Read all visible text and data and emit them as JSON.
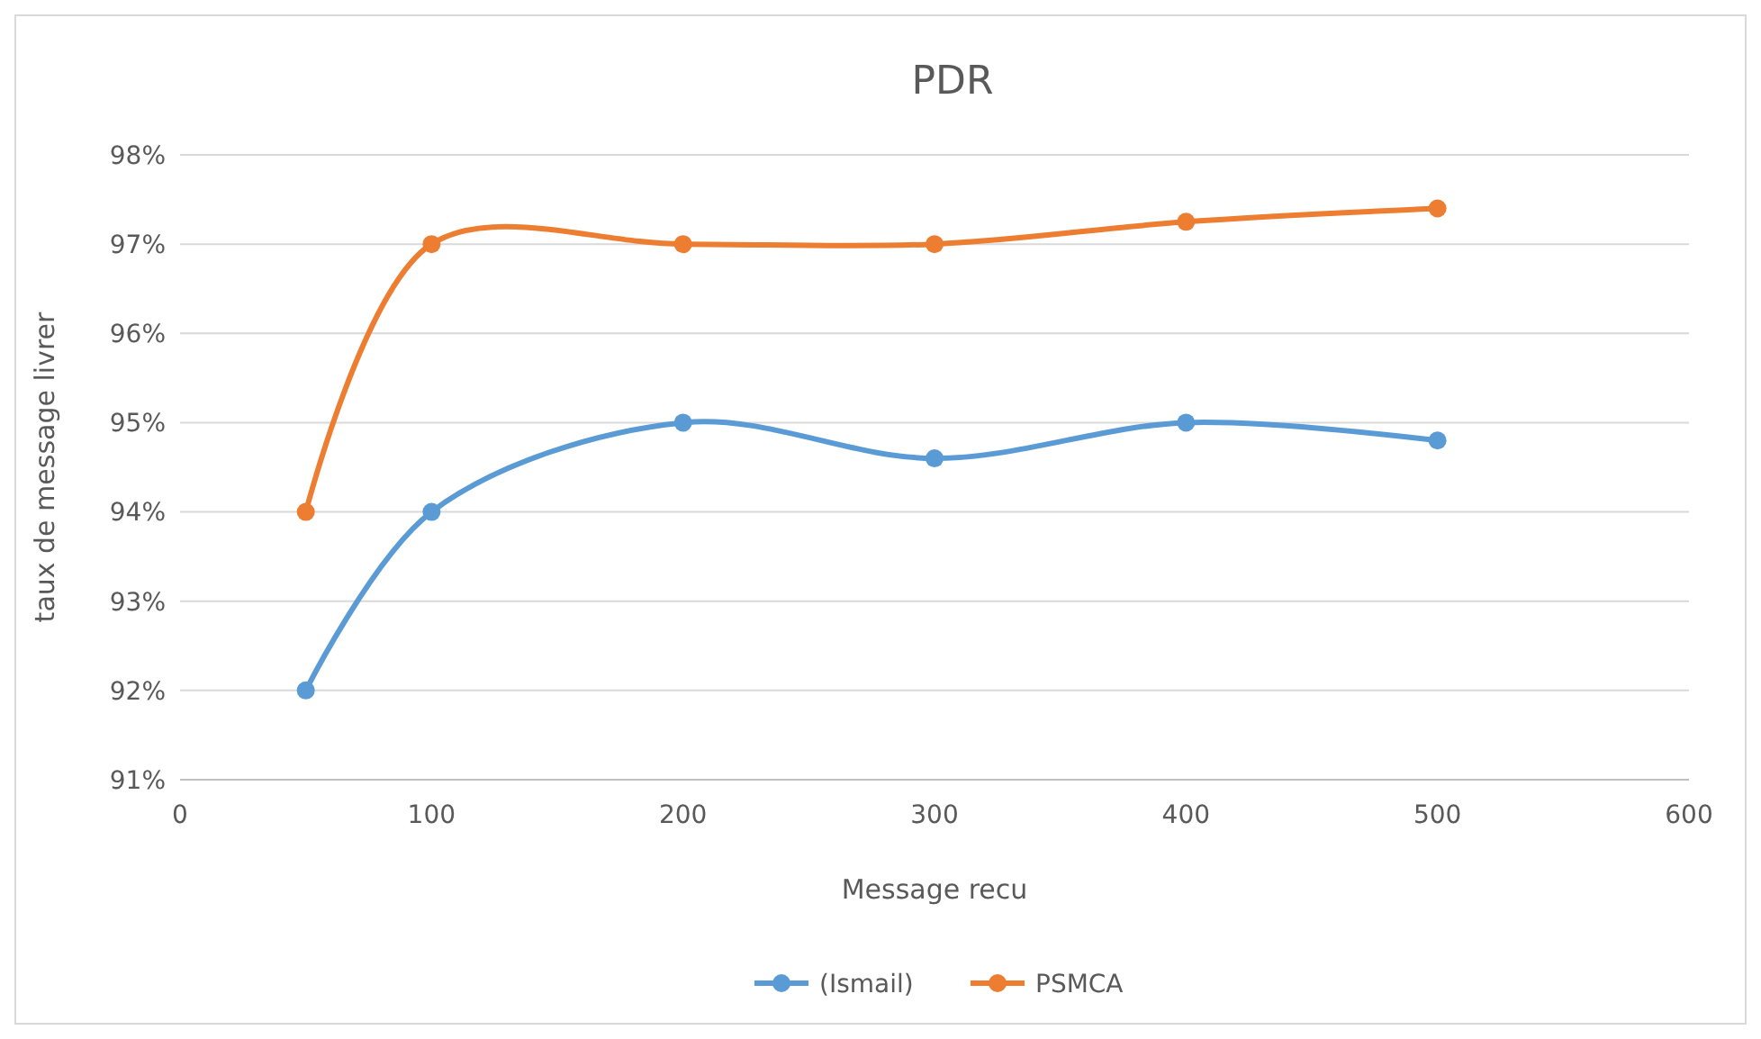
{
  "chart_data": {
    "type": "line",
    "title": "PDR",
    "xlabel": "Message recu",
    "ylabel": "taux de message livrer",
    "x": [
      50,
      100,
      200,
      300,
      400,
      500
    ],
    "series": [
      {
        "name": "(Ismail)",
        "color": "#5b9bd5",
        "values": [
          92,
          94,
          95,
          94.6,
          95,
          94.8
        ]
      },
      {
        "name": "PSMCA",
        "color": "#ed7d31",
        "values": [
          94,
          97,
          97,
          97,
          97.25,
          97.4
        ]
      }
    ],
    "xlim": [
      0,
      600
    ],
    "xticks": [
      0,
      100,
      200,
      300,
      400,
      500,
      600
    ],
    "ylim": [
      91,
      98
    ],
    "yticks": [
      {
        "value": 91,
        "label": "91%"
      },
      {
        "value": 92,
        "label": "92%"
      },
      {
        "value": 93,
        "label": "93%"
      },
      {
        "value": 94,
        "label": "94%"
      },
      {
        "value": 95,
        "label": "95%"
      },
      {
        "value": 96,
        "label": "96%"
      },
      {
        "value": 97,
        "label": "97%"
      },
      {
        "value": 98,
        "label": "98%"
      }
    ],
    "grid": "y",
    "legend": "bottom",
    "marker": "circle",
    "line_style": "solid"
  }
}
